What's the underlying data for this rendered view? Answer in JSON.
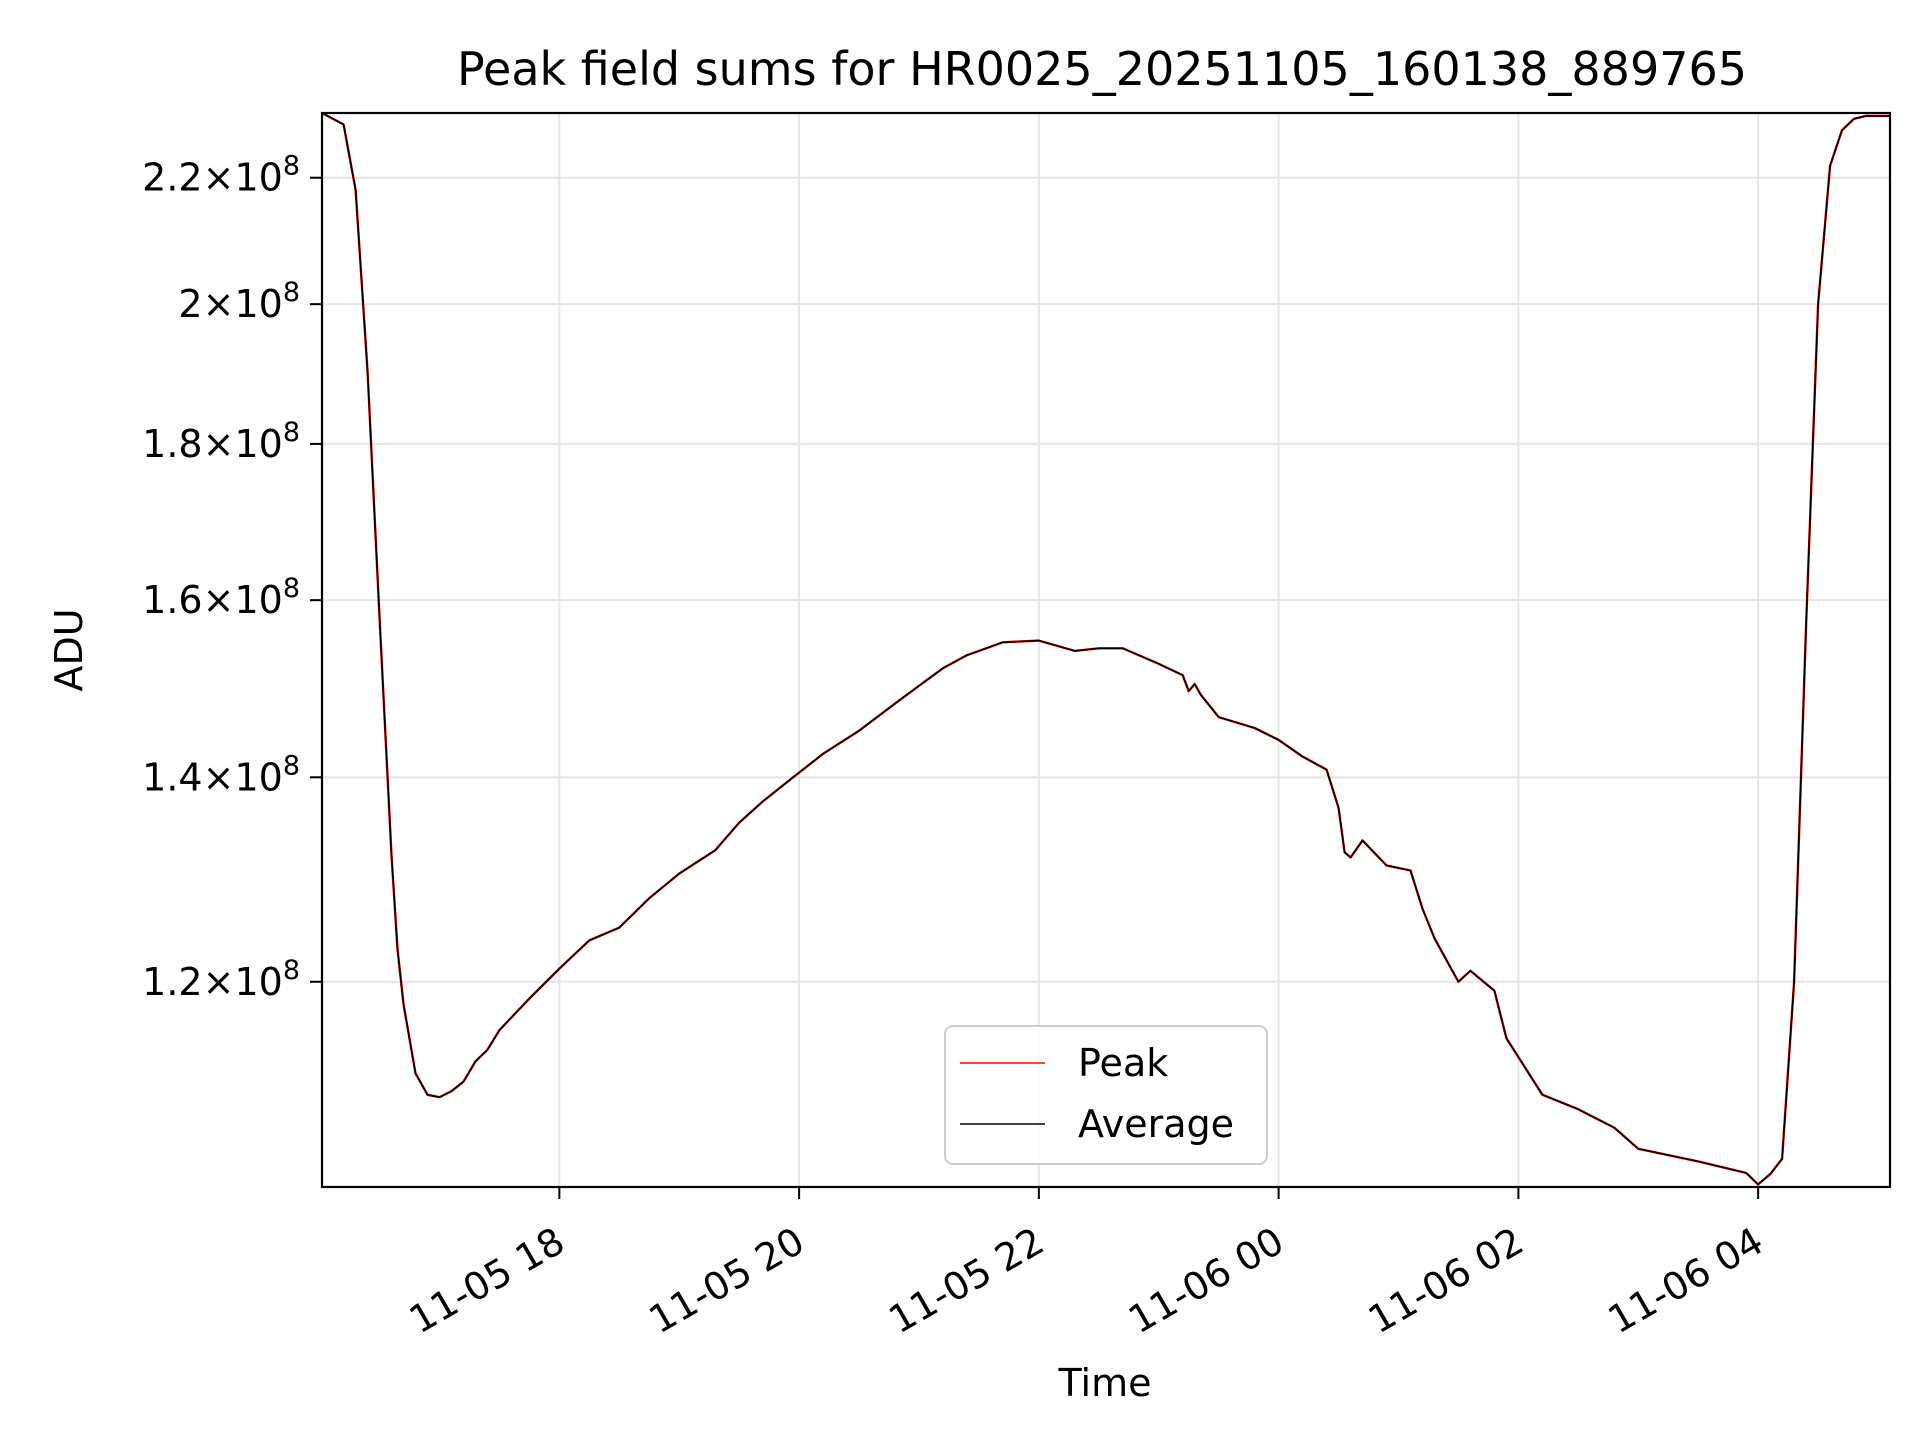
{
  "chart_data": {
    "type": "line",
    "title": "Peak field sums for HR0025_20251105_160138_889765",
    "xlabel": "Time",
    "ylabel": "ADU",
    "yscale": "log",
    "xlim_hours": [
      16.02,
      29.1
    ],
    "ylim": [
      102800000,
      231000000
    ],
    "grid": true,
    "legend_position": "lower-center",
    "x_ticks": [
      {
        "hours": 18,
        "label": "11-05 18"
      },
      {
        "hours": 20,
        "label": "11-05 20"
      },
      {
        "hours": 22,
        "label": "11-05 22"
      },
      {
        "hours": 24,
        "label": "11-06 00"
      },
      {
        "hours": 26,
        "label": "11-06 02"
      },
      {
        "hours": 28,
        "label": "11-06 04"
      }
    ],
    "y_ticks": [
      {
        "value": 120000000,
        "mantissa": "1.2",
        "exponent": "8"
      },
      {
        "value": 140000000,
        "mantissa": "1.4",
        "exponent": "8"
      },
      {
        "value": 160000000,
        "mantissa": "1.6",
        "exponent": "8"
      },
      {
        "value": 180000000,
        "mantissa": "1.8",
        "exponent": "8"
      },
      {
        "value": 200000000,
        "mantissa": "2",
        "exponent": "8"
      },
      {
        "value": 220000000,
        "mantissa": "2.2",
        "exponent": "8"
      }
    ],
    "times_note": "x values are hours since 2025-11-05 00:00 (e.g. 25.5 = 11-06 01:30)",
    "x": [
      16.02,
      16.2,
      16.3,
      16.4,
      16.5,
      16.6,
      16.65,
      16.7,
      16.8,
      16.9,
      17.0,
      17.1,
      17.2,
      17.3,
      17.4,
      17.5,
      17.75,
      18.0,
      18.25,
      18.5,
      18.75,
      19.0,
      19.3,
      19.5,
      19.7,
      19.95,
      20.2,
      20.5,
      20.8,
      21.0,
      21.2,
      21.4,
      21.7,
      22.0,
      22.3,
      22.5,
      22.7,
      23.0,
      23.2,
      23.25,
      23.3,
      23.35,
      23.5,
      23.8,
      24.0,
      24.2,
      24.4,
      24.5,
      24.55,
      24.6,
      24.7,
      24.9,
      25.1,
      25.2,
      25.3,
      25.5,
      25.6,
      25.8,
      25.9,
      26.2,
      26.5,
      26.8,
      27.0,
      27.5,
      27.9,
      28.0,
      28.1,
      28.2,
      28.3,
      28.4,
      28.5,
      28.6,
      28.7,
      28.8,
      28.9,
      29.0,
      29.1
    ],
    "series": [
      {
        "name": "Peak",
        "color": "#ff0000",
        "values": [
          231000000,
          229000000,
          218000000,
          190000000,
          158000000,
          132000000,
          123000000,
          118000000,
          112000000,
          110200000,
          110000000,
          110500000,
          111300000,
          113000000,
          114000000,
          115700000,
          118500000,
          121200000,
          123800000,
          125000000,
          127800000,
          130200000,
          132500000,
          135300000,
          137500000,
          140000000,
          142500000,
          145000000,
          148000000,
          150000000,
          152000000,
          153500000,
          155000000,
          155200000,
          154000000,
          154300000,
          154300000,
          152500000,
          151200000,
          149400000,
          150200000,
          149000000,
          146500000,
          145300000,
          144000000,
          142200000,
          140800000,
          136800000,
          132300000,
          131800000,
          133500000,
          131000000,
          130500000,
          126800000,
          124000000,
          120000000,
          121000000,
          119200000,
          115000000,
          110200000,
          109000000,
          107500000,
          105800000,
          104800000,
          103900000,
          103000000,
          103800000,
          105000000,
          120000000,
          157000000,
          200000000,
          222000000,
          228000000,
          230000000,
          230500000,
          230500000,
          230500000
        ]
      },
      {
        "name": "Average",
        "color": "#000000",
        "values": [
          231000000,
          229000000,
          218000000,
          190000000,
          158000000,
          132000000,
          123000000,
          118000000,
          112000000,
          110200000,
          110000000,
          110500000,
          111300000,
          113000000,
          114000000,
          115700000,
          118500000,
          121200000,
          123800000,
          125000000,
          127800000,
          130200000,
          132500000,
          135300000,
          137500000,
          140000000,
          142500000,
          145000000,
          148000000,
          150000000,
          152000000,
          153500000,
          155000000,
          155200000,
          154000000,
          154300000,
          154300000,
          152500000,
          151200000,
          149400000,
          150200000,
          149000000,
          146500000,
          145300000,
          144000000,
          142200000,
          140800000,
          136800000,
          132300000,
          131800000,
          133500000,
          131000000,
          130500000,
          126800000,
          124000000,
          120000000,
          121000000,
          119200000,
          115000000,
          110200000,
          109000000,
          107500000,
          105800000,
          104800000,
          103900000,
          103000000,
          103800000,
          105000000,
          120000000,
          157000000,
          200000000,
          222000000,
          228000000,
          230000000,
          230500000,
          230500000,
          230500000
        ]
      }
    ],
    "legend": [
      {
        "label": "Peak",
        "color": "#ff0000"
      },
      {
        "label": "Average",
        "color": "#000000"
      }
    ]
  }
}
